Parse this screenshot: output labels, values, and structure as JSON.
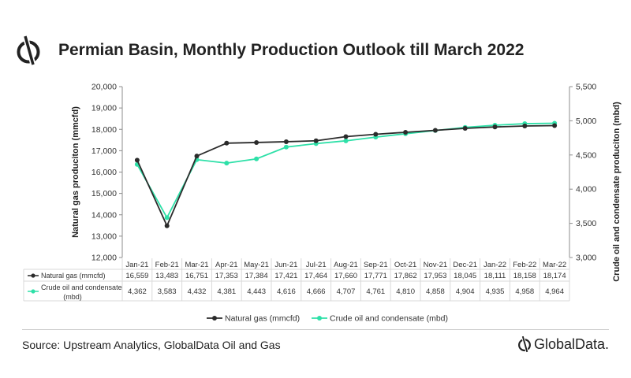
{
  "title": "Permian Basin, Monthly Production Outlook till March 2022",
  "source": "Source: Upstream Analytics, GlobalData Oil and Gas",
  "brand": "GlobalData.",
  "colors": {
    "gas": "#2b2b2b",
    "oil": "#2ee0a8",
    "grid": "#d9d9d9",
    "axis": "#8c8c8c"
  },
  "chart_data": {
    "type": "line",
    "title": "Permian Basin, Monthly Production Outlook till March 2022",
    "categories": [
      "Jan-21",
      "Feb-21",
      "Mar-21",
      "Apr-21",
      "May-21",
      "Jun-21",
      "Jul-21",
      "Aug-21",
      "Sep-21",
      "Oct-21",
      "Nov-21",
      "Dec-21",
      "Jan-22",
      "Feb-22",
      "Mar-22"
    ],
    "series": [
      {
        "name": "Natural gas (mmcfd)",
        "axis": "left",
        "values": [
          16559,
          13483,
          16751,
          17353,
          17384,
          17421,
          17464,
          17660,
          17771,
          17862,
          17953,
          18045,
          18111,
          18158,
          18174
        ],
        "labels": [
          "16,559",
          "13,483",
          "16,751",
          "17,353",
          "17,384",
          "17,421",
          "17,464",
          "17,660",
          "17,771",
          "17,862",
          "17,953",
          "18,045",
          "18,111",
          "18,158",
          "18,174"
        ]
      },
      {
        "name": "Crude oil and condensate (mbd)",
        "table_name_lines": [
          "Crude oil and condensate",
          "(mbd)"
        ],
        "axis": "right",
        "values": [
          4362,
          3583,
          4432,
          4381,
          4443,
          4616,
          4666,
          4707,
          4761,
          4810,
          4858,
          4904,
          4935,
          4958,
          4964
        ],
        "labels": [
          "4,362",
          "3,583",
          "4,432",
          "4,381",
          "4,443",
          "4,616",
          "4,666",
          "4,707",
          "4,761",
          "4,810",
          "4,858",
          "4,904",
          "4,935",
          "4,958",
          "4,964"
        ]
      }
    ],
    "ylabel": "Natural gas produciton (mmcfd)",
    "y2label": "Crude oil and condensate produciton (mbd)",
    "ylim": [
      12000,
      20000
    ],
    "y2lim": [
      3000,
      5500
    ],
    "yticks": [
      "12,000",
      "13,000",
      "14,000",
      "15,000",
      "16,000",
      "17,000",
      "18,000",
      "19,000",
      "20,000"
    ],
    "y2ticks": [
      "3,000",
      "3,500",
      "4,000",
      "4,500",
      "5,000",
      "5,500"
    ],
    "table_name_lines_gas": [
      "Natural gas (mmcfd)"
    ],
    "legend": [
      "Natural gas (mmcfd)",
      "Crude oil and condensate (mbd)"
    ],
    "legend_position": "bottom",
    "grid": false
  }
}
